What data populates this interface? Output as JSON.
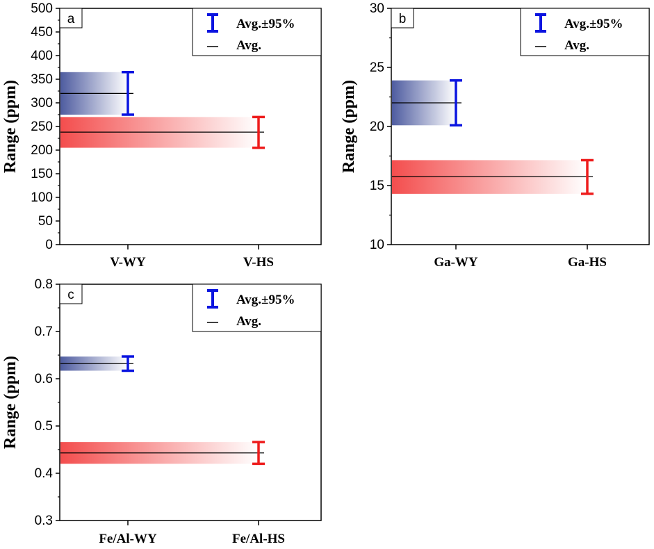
{
  "colors": {
    "wy": "#0a14e0",
    "hs": "#ee1c1c",
    "wy_band": "#2f3f8f",
    "hs_band": "#f23a3a",
    "avg_line": "#000000"
  },
  "legend": {
    "ci_label": "Avg.±95%",
    "avg_label": "Avg."
  },
  "chart_data": [
    {
      "type": "bar",
      "panel": "a",
      "ylabel": "Range (ppm)",
      "categories": [
        "V-WY",
        "V-HS"
      ],
      "ylim": [
        0,
        500
      ],
      "yticks": [
        "0",
        "50",
        "100",
        "150",
        "200",
        "250",
        "300",
        "350",
        "400",
        "450",
        "500"
      ],
      "series": [
        {
          "name": "WY",
          "avg": 320,
          "ci_low": 275,
          "ci_high": 365
        },
        {
          "name": "HS",
          "avg": 238,
          "ci_low": 205,
          "ci_high": 270
        }
      ],
      "legend_position": "top-right"
    },
    {
      "type": "bar",
      "panel": "b",
      "ylabel": "Range (ppm)",
      "categories": [
        "Ga-WY",
        "Ga-HS"
      ],
      "ylim": [
        10,
        30
      ],
      "yticks": [
        "10",
        "15",
        "20",
        "25",
        "30"
      ],
      "series": [
        {
          "name": "WY",
          "avg": 22,
          "ci_low": 20.1,
          "ci_high": 23.9
        },
        {
          "name": "HS",
          "avg": 15.75,
          "ci_low": 14.3,
          "ci_high": 17.15
        }
      ],
      "legend_position": "top-right"
    },
    {
      "type": "bar",
      "panel": "c",
      "ylabel": "Range (ppm)",
      "categories": [
        "Fe/Al-WY",
        "Fe/Al-HS"
      ],
      "ylim": [
        0.3,
        0.8
      ],
      "yticks": [
        "0.3",
        "0.4",
        "0.5",
        "0.6",
        "0.7",
        "0.8"
      ],
      "series": [
        {
          "name": "WY",
          "avg": 0.632,
          "ci_low": 0.617,
          "ci_high": 0.647
        },
        {
          "name": "HS",
          "avg": 0.443,
          "ci_low": 0.42,
          "ci_high": 0.466
        }
      ],
      "legend_position": "top-right"
    }
  ]
}
